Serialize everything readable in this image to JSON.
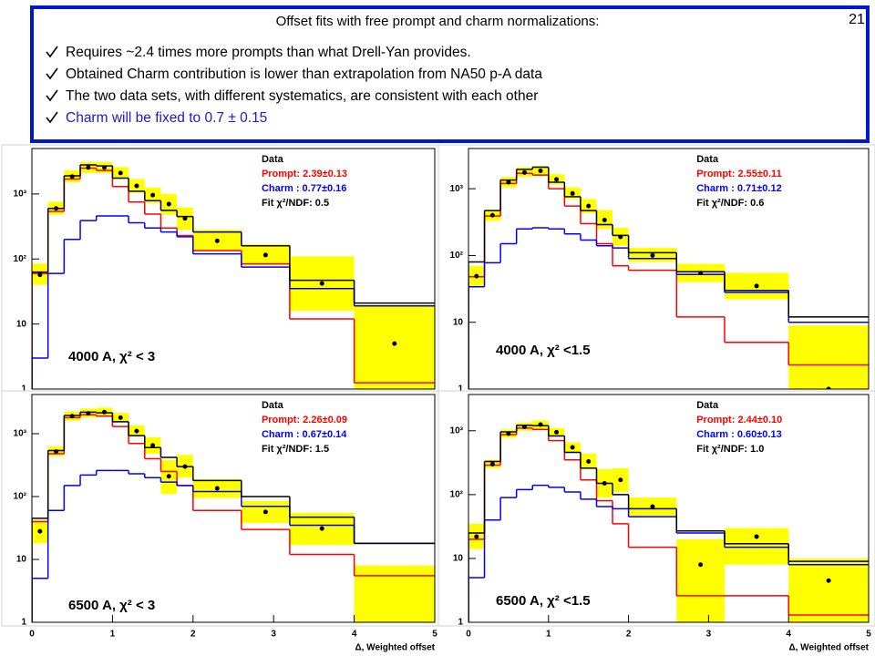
{
  "slide": {
    "title": "Offset fits with free prompt and charm normalizations:",
    "bullets": [
      "Requires ~2.4 times more prompts than what Drell-Yan provides.",
      "Obtained Charm contribution is lower than extrapolation from NA50 p-A data",
      "The two data sets, with different systematics, are consistent with each other",
      "Charm will be fixed to 0.7 ± 0.15"
    ],
    "page_number": "21"
  },
  "chart_data": [
    {
      "type": "histogram",
      "label": "4000 A,  χ² < 3",
      "log_y": true,
      "bins": [
        0,
        0.2,
        0.4,
        0.6,
        0.8,
        1.0,
        1.2,
        1.4,
        1.6,
        1.8,
        2.0,
        2.6,
        3.2,
        4.0,
        5.0
      ],
      "xlim": [
        0,
        5
      ],
      "ylim": [
        1,
        5000
      ],
      "yticks": [
        1,
        10,
        {
          "value": 100,
          "label": "10²"
        },
        {
          "value": 1000,
          "label": "10³"
        }
      ],
      "band_color": "#ffff00",
      "series": [
        {
          "name": "Data",
          "color": "#000000",
          "style": "points",
          "values": [
            57,
            600,
            1850,
            2550,
            2550,
            2100,
            1330,
            960,
            700,
            420,
            190,
            115,
            42,
            5
          ],
          "band": [
            [
              40,
              85
            ],
            [
              480,
              760
            ],
            [
              1500,
              2300
            ],
            [
              2100,
              3100
            ],
            [
              2100,
              3100
            ],
            [
              1700,
              2600
            ],
            [
              1050,
              1700
            ],
            [
              720,
              1250
            ],
            [
              480,
              1000
            ],
            [
              280,
              620
            ],
            [
              130,
              280
            ],
            [
              80,
              170
            ],
            [
              16,
              110
            ],
            [
              1,
              20
            ]
          ]
        },
        {
          "name": "Prompt: 2.39±0.13",
          "color": "#ff0000",
          "style": "step",
          "values": [
            60,
            540,
            1700,
            2500,
            2300,
            1300,
            750,
            490,
            300,
            230,
            135,
            84,
            12,
            1.25
          ]
        },
        {
          "name": "Charm : 0.77±0.16",
          "color": "#0000ff",
          "style": "step",
          "values": [
            3,
            60,
            200,
            390,
            460,
            460,
            360,
            300,
            260,
            220,
            120,
            75,
            35,
            19
          ]
        },
        {
          "name": "Fit  χ²/NDF:  0.5",
          "color": "#000000",
          "style": "step",
          "values": [
            63,
            600,
            1900,
            2800,
            2700,
            1750,
            1100,
            790,
            560,
            450,
            260,
            160,
            47,
            21
          ]
        }
      ]
    },
    {
      "type": "histogram",
      "label": "4000 A,  χ² <1.5",
      "log_y": true,
      "bins": [
        0,
        0.2,
        0.4,
        0.6,
        0.8,
        1.0,
        1.2,
        1.4,
        1.6,
        1.8,
        2.0,
        2.6,
        3.2,
        4.0,
        5.0
      ],
      "xlim": [
        0,
        5
      ],
      "ylim": [
        1,
        4000
      ],
      "yticks": [
        1,
        10,
        {
          "value": 100,
          "label": "10²"
        },
        {
          "value": 1000,
          "label": "10³"
        }
      ],
      "band_color": "#ffff00",
      "series": [
        {
          "name": "Data",
          "color": "#000000",
          "style": "points",
          "values": [
            49,
            400,
            1250,
            1750,
            1850,
            1380,
            850,
            550,
            340,
            190,
            100,
            55,
            35,
            1
          ],
          "band": [
            [
              35,
              70
            ],
            [
              330,
              480
            ],
            [
              1050,
              1500
            ],
            [
              1500,
              2100
            ],
            [
              1550,
              2200
            ],
            [
              1150,
              1650
            ],
            [
              700,
              1050
            ],
            [
              430,
              700
            ],
            [
              250,
              480
            ],
            [
              140,
              260
            ],
            [
              80,
              130
            ],
            [
              40,
              75
            ],
            [
              22,
              55
            ],
            [
              1,
              9
            ]
          ]
        },
        {
          "name": "Prompt: 2.55±0.11",
          "color": "#ff0000",
          "style": "step",
          "values": [
            48,
            390,
            1200,
            1700,
            1600,
            1000,
            550,
            300,
            150,
            70,
            60,
            12,
            5,
            2.3
          ]
        },
        {
          "name": "Charm : 0.71±0.12",
          "color": "#0000ff",
          "style": "step",
          "values": [
            34,
            78,
            150,
            250,
            260,
            250,
            210,
            170,
            140,
            130,
            90,
            52,
            28,
            10
          ]
        },
        {
          "name": "Fit  χ²/NDF:  0.6",
          "color": "#000000",
          "style": "step",
          "values": [
            80,
            470,
            1350,
            1950,
            2100,
            1250,
            760,
            470,
            290,
            200,
            110,
            57,
            30,
            12
          ]
        }
      ]
    },
    {
      "type": "histogram",
      "label": "6500 A,  χ² < 3",
      "log_y": true,
      "bins": [
        0,
        0.2,
        0.4,
        0.6,
        0.8,
        1.0,
        1.2,
        1.4,
        1.6,
        1.8,
        2.0,
        2.6,
        3.2,
        4.0,
        5.0
      ],
      "xlim": [
        0,
        5
      ],
      "ylim": [
        1,
        4200
      ],
      "xticks": [
        0,
        1,
        2,
        3,
        4,
        5
      ],
      "xlabel": "Δ, Weighted offset",
      "yticks": [
        1,
        10,
        {
          "value": 100,
          "label": "10²"
        },
        {
          "value": 1000,
          "label": "10³"
        }
      ],
      "band_color": "#ffff00",
      "series": [
        {
          "name": "Data",
          "color": "#000000",
          "style": "points",
          "values": [
            28,
            520,
            1900,
            2100,
            2200,
            1800,
            1100,
            650,
            210,
            300,
            135,
            57,
            31,
            null
          ],
          "band": [
            [
              18,
              42
            ],
            [
              440,
              620
            ],
            [
              1600,
              2250
            ],
            [
              1800,
              2500
            ],
            [
              1850,
              2600
            ],
            [
              1500,
              2150
            ],
            [
              900,
              1350
            ],
            [
              480,
              880
            ],
            [
              110,
              380
            ],
            [
              200,
              460
            ],
            [
              95,
              190
            ],
            [
              38,
              85
            ],
            [
              17,
              55
            ],
            [
              1,
              8
            ]
          ]
        },
        {
          "name": "Prompt: 2.26±0.09",
          "color": "#ff0000",
          "style": "step",
          "values": [
            40,
            480,
            1800,
            2000,
            1900,
            1300,
            700,
            400,
            250,
            150,
            60,
            30,
            12,
            5.5
          ]
        },
        {
          "name": "Charm : 0.67±0.14",
          "color": "#0000ff",
          "style": "step",
          "values": [
            5,
            60,
            150,
            220,
            260,
            260,
            230,
            200,
            170,
            150,
            120,
            70,
            35,
            18
          ]
        },
        {
          "name": "Fit  χ²/NDF:  1.5",
          "color": "#000000",
          "style": "step",
          "values": [
            45,
            540,
            1950,
            2200,
            2150,
            1550,
            930,
            600,
            420,
            300,
            180,
            100,
            47,
            18
          ]
        }
      ]
    },
    {
      "type": "histogram",
      "label": "6500 A,  χ² <1.5",
      "log_y": true,
      "bins": [
        0,
        0.2,
        0.4,
        0.6,
        0.8,
        1.0,
        1.2,
        1.4,
        1.6,
        1.8,
        2.0,
        2.6,
        3.2,
        4.0,
        5.0
      ],
      "xlim": [
        0,
        5
      ],
      "ylim": [
        1,
        3700
      ],
      "xticks": [
        0,
        1,
        2,
        3,
        4,
        5
      ],
      "xlabel": "Δ, Weighted offset",
      "yticks": [
        1,
        10,
        {
          "value": 100,
          "label": "10²"
        },
        {
          "value": 1000,
          "label": "10³"
        }
      ],
      "band_color": "#ffff00",
      "series": [
        {
          "name": "Data",
          "color": "#000000",
          "style": "points",
          "values": [
            22,
            300,
            900,
            1150,
            1250,
            950,
            550,
            330,
            150,
            170,
            65,
            8,
            22,
            4.5
          ],
          "band": [
            [
              14,
              35
            ],
            [
              260,
              350
            ],
            [
              780,
              1050
            ],
            [
              1000,
              1350
            ],
            [
              1080,
              1450
            ],
            [
              820,
              1100
            ],
            [
              460,
              660
            ],
            [
              250,
              440
            ],
            [
              90,
              250
            ],
            [
              110,
              260
            ],
            [
              45,
              90
            ],
            [
              1,
              20
            ],
            [
              8,
              30
            ],
            [
              1,
              10
            ]
          ]
        },
        {
          "name": "Prompt: 2.44±0.10",
          "color": "#ff0000",
          "style": "step",
          "values": [
            20,
            290,
            870,
            1100,
            1050,
            700,
            350,
            170,
            80,
            35,
            15,
            2.6,
            2.6,
            1.3
          ]
        },
        {
          "name": "Charm : 0.60±0.13",
          "color": "#0000ff",
          "style": "step",
          "values": [
            5,
            40,
            90,
            120,
            140,
            130,
            110,
            85,
            65,
            60,
            45,
            25,
            15,
            8
          ]
        },
        {
          "name": "Fit  χ²/NDF:  1.0",
          "color": "#000000",
          "style": "step",
          "values": [
            25,
            330,
            960,
            1220,
            1200,
            830,
            460,
            260,
            150,
            100,
            60,
            27,
            17,
            9
          ]
        }
      ]
    }
  ]
}
